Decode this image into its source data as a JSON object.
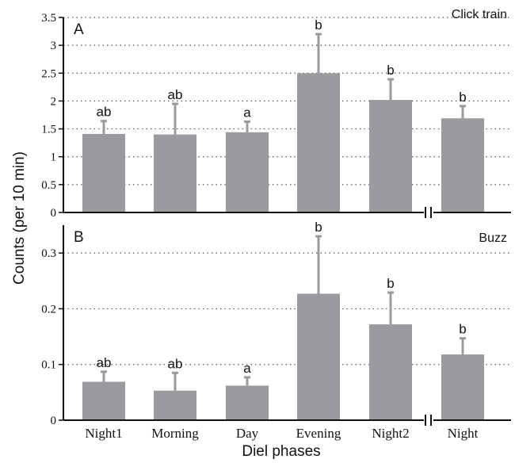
{
  "figure": {
    "ylabel": "Counts (per 10 min)",
    "xlabel": "Diel phases",
    "categories": [
      "Night1",
      "Morning",
      "Day",
      "Evening",
      "Night2",
      "Night"
    ],
    "bar_color": "#999b9e"
  },
  "chart_data": [
    {
      "type": "bar",
      "panel_label": "A",
      "subtitle": "Click train",
      "categories": [
        "Night1",
        "Morning",
        "Day",
        "Evening",
        "Night2",
        "Night"
      ],
      "values": [
        1.41,
        1.4,
        1.44,
        2.5,
        2.02,
        1.69
      ],
      "error_upper": [
        1.64,
        1.95,
        1.63,
        3.2,
        2.39,
        1.91
      ],
      "significance_labels": [
        "ab",
        "ab",
        "a",
        "b",
        "b",
        "b"
      ],
      "ylim": [
        0,
        3.5
      ],
      "yticks": [
        0,
        0.5,
        1,
        1.5,
        2,
        2.5,
        3,
        3.5
      ],
      "ytick_labels": [
        "0",
        "0.5",
        "1",
        "1.5",
        "2",
        "2.5",
        "3",
        "3.5"
      ],
      "grid": "horizontal dotted",
      "axis_break": "between Night2 and Night"
    },
    {
      "type": "bar",
      "panel_label": "B",
      "subtitle": "Buzz",
      "categories": [
        "Night1",
        "Morning",
        "Day",
        "Evening",
        "Night2",
        "Night"
      ],
      "values": [
        0.069,
        0.053,
        0.062,
        0.227,
        0.172,
        0.118
      ],
      "error_upper": [
        0.087,
        0.085,
        0.077,
        0.33,
        0.229,
        0.147
      ],
      "significance_labels": [
        "ab",
        "ab",
        "a",
        "b",
        "b",
        "b"
      ],
      "ylim": [
        0,
        0.35
      ],
      "yticks": [
        0,
        0.1,
        0.2,
        0.3
      ],
      "ytick_labels": [
        "0",
        "0.1",
        "0.2",
        "0.3"
      ],
      "grid": "horizontal dotted",
      "axis_break": "between Night2 and Night"
    }
  ]
}
